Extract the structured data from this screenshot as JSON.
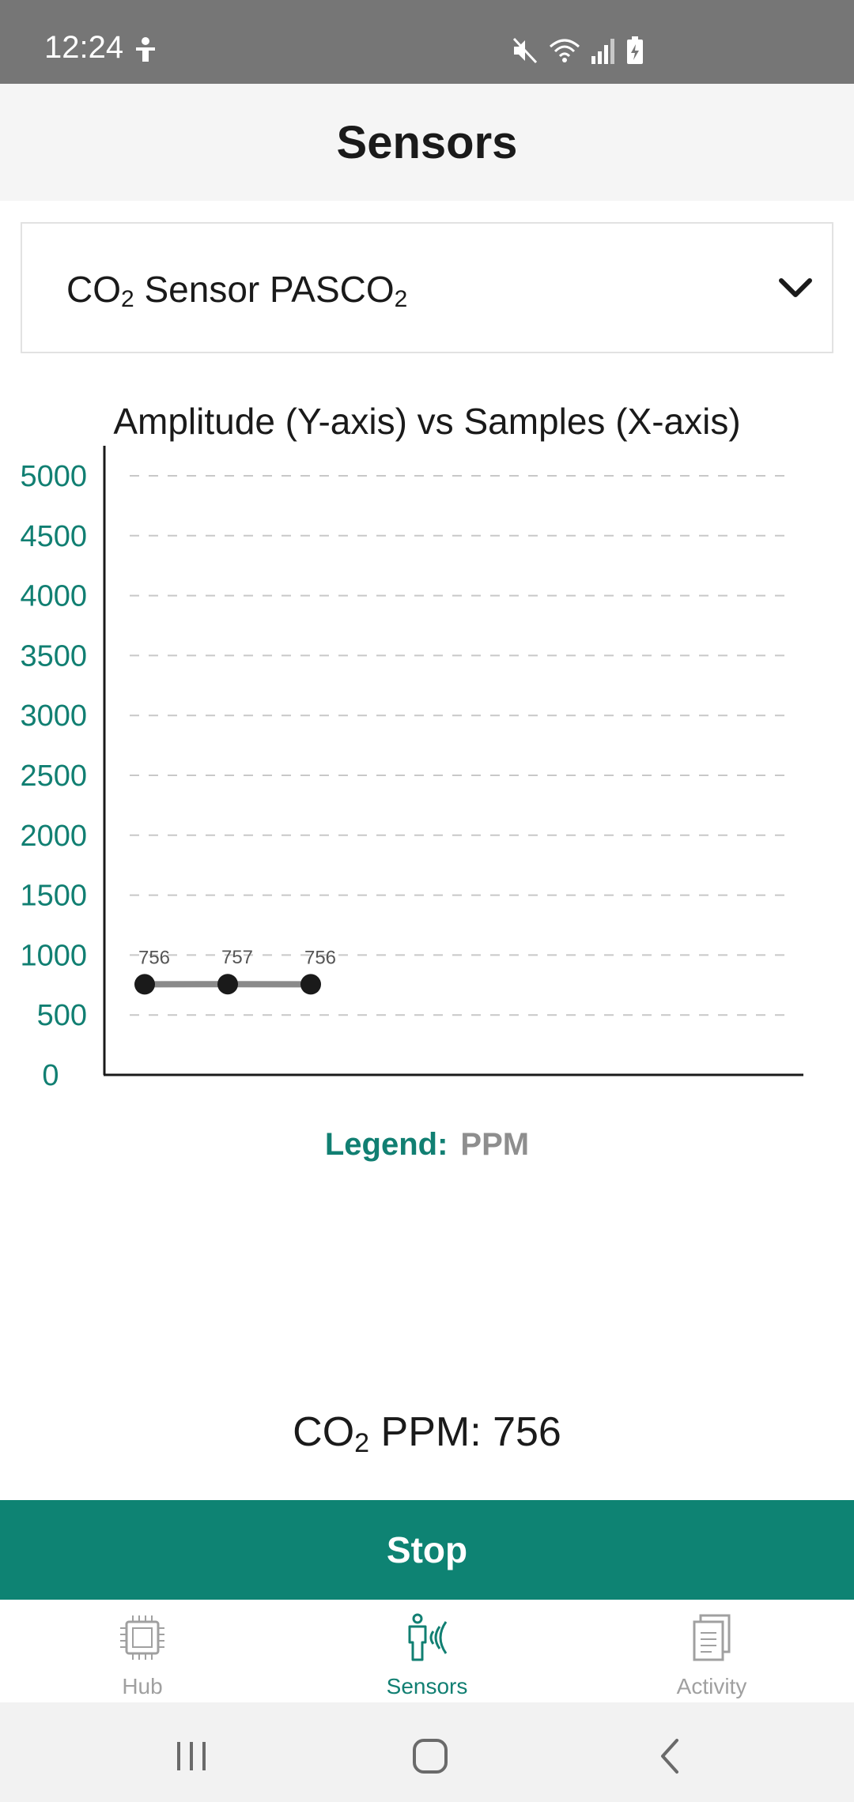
{
  "status_bar": {
    "time": "12:24",
    "icons": [
      "accessibility-icon",
      "mute-icon",
      "wifi-icon",
      "signal-icon",
      "battery-charging-icon"
    ]
  },
  "header": {
    "title": "Sensors"
  },
  "sensor_select": {
    "label_prefix": "CO",
    "label_sub1": "2",
    "label_mid": " Sensor PASCO",
    "label_sub2": "2"
  },
  "chart": {
    "title": "Amplitude (Y-axis) vs Samples (X-axis)"
  },
  "chart_data": {
    "type": "line",
    "title": "Amplitude (Y-axis) vs Samples (X-axis)",
    "x": [
      1,
      2,
      3
    ],
    "series": [
      {
        "name": "PPM",
        "values": [
          756,
          757,
          756
        ],
        "color": "#8a8a8a"
      }
    ],
    "point_labels": [
      "756",
      "757",
      "756"
    ],
    "ylim": [
      0,
      5000
    ],
    "yticks": [
      "0",
      "500",
      "1000",
      "1500",
      "2000",
      "2500",
      "3000",
      "3500",
      "4000",
      "4500",
      "5000"
    ],
    "grid": true,
    "xlabel": "",
    "ylabel": "",
    "legend_position": "bottom"
  },
  "legend": {
    "key": "Legend:",
    "value": "PPM"
  },
  "reading": {
    "prefix": "CO",
    "sub": "2",
    "suffix": " PPM: 756"
  },
  "stop_button": {
    "label": "Stop"
  },
  "bottom_nav": {
    "items": [
      {
        "label": "Hub",
        "icon": "chip-icon",
        "active": false
      },
      {
        "label": "Sensors",
        "icon": "person-signal-icon",
        "active": true
      },
      {
        "label": "Activity",
        "icon": "document-icon",
        "active": false
      }
    ]
  },
  "colors": {
    "accent": "#0e8373",
    "axis_label": "#117f72",
    "status_bar": "#767676",
    "inactive": "#a0a0a0"
  }
}
